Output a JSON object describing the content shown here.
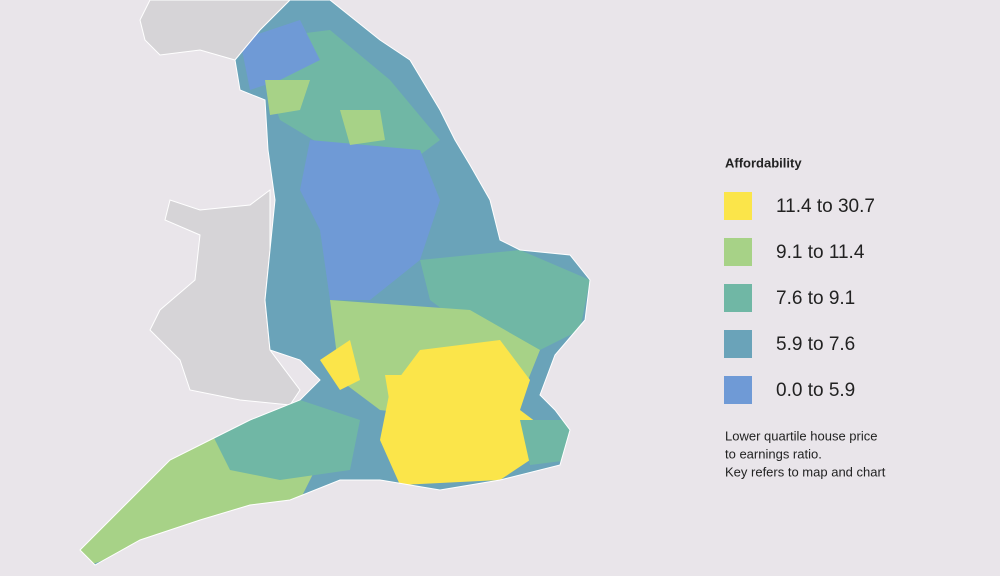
{
  "legend": {
    "title": "Affordability",
    "items": [
      {
        "label": "11.4 to 30.7",
        "color": "#fbe54a"
      },
      {
        "label": "9.1 to 11.4",
        "color": "#a7d287"
      },
      {
        "label": "7.6 to 9.1",
        "color": "#70b7a5"
      },
      {
        "label": "5.9 to 7.6",
        "color": "#6aa3b9"
      },
      {
        "label": "0.0 to 5.9",
        "color": "#6f9ad6"
      }
    ]
  },
  "note": [
    "Lower quartile house price",
    "to earnings ratio.",
    "Key refers to map and chart"
  ]
}
